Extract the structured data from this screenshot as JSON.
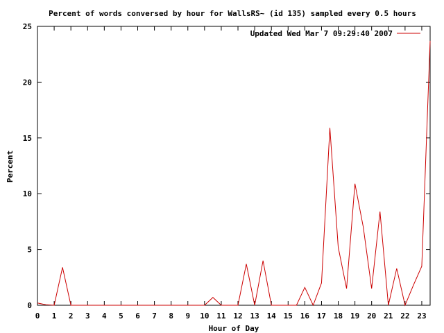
{
  "chart_data": {
    "type": "line",
    "title": "Percent of words conversed by hour for WallsRS~ (id 135) sampled every 0.5 hours",
    "xlabel": "Hour of Day",
    "ylabel": "Percent",
    "xlim": [
      0,
      23.5
    ],
    "ylim": [
      0,
      25
    ],
    "xticks": [
      "0",
      "1",
      "2",
      "3",
      "4",
      "5",
      "6",
      "7",
      "8",
      "9",
      "10",
      "11",
      "12",
      "13",
      "14",
      "15",
      "16",
      "17",
      "18",
      "19",
      "20",
      "21",
      "22",
      "23"
    ],
    "yticks": [
      "0",
      "5",
      "10",
      "15",
      "20",
      "25"
    ],
    "grid": false,
    "legend_position": "top-right",
    "series": [
      {
        "name": "Updated Wed Mar  7 09:29:40 2007",
        "color": "#cc0000",
        "x": [
          0,
          0.5,
          1,
          1.5,
          2,
          2.5,
          3,
          3.5,
          4,
          4.5,
          5,
          5.5,
          6,
          6.5,
          7,
          7.5,
          8,
          8.5,
          9,
          9.5,
          10,
          10.5,
          11,
          11.5,
          12,
          12.5,
          13,
          13.5,
          14,
          14.5,
          15,
          15.5,
          16,
          16.5,
          17,
          17.5,
          18,
          18.5,
          19,
          19.5,
          20,
          20.5,
          21,
          21.5,
          22,
          22.5,
          23,
          23.5
        ],
        "y": [
          0.2,
          0.05,
          0,
          3.4,
          0,
          0,
          0,
          0,
          0,
          0,
          0,
          0,
          0,
          0,
          0,
          0,
          0,
          0,
          0,
          0,
          0,
          0.7,
          0,
          0,
          0,
          3.7,
          0,
          4.0,
          0,
          0,
          0,
          0,
          1.6,
          0,
          2.0,
          15.9,
          5.2,
          1.5,
          10.9,
          7.0,
          1.5,
          8.4,
          0,
          3.3,
          0,
          1.8,
          3.5,
          23.7
        ]
      }
    ]
  }
}
